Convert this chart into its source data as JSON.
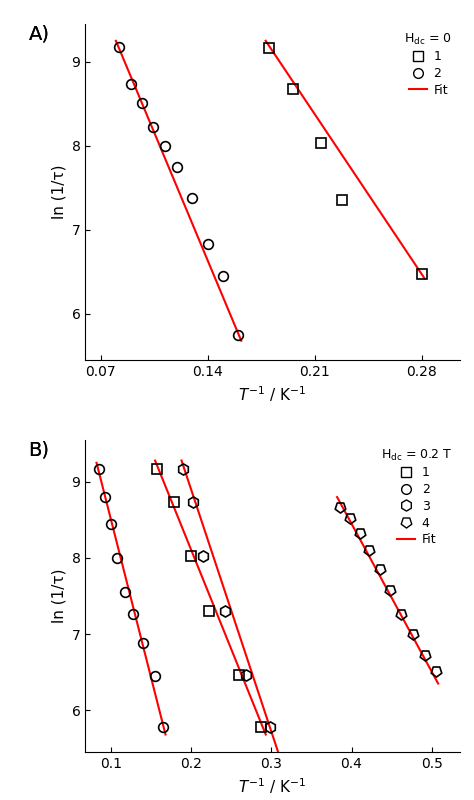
{
  "panel_A": {
    "title": "A)",
    "legend_title": "H$_\\mathregular{dc}$ = 0",
    "xlabel": "$\\mathit{T}^{-1}$ / K$^{-1}$",
    "ylabel": "ln (1/τ)",
    "xlim": [
      0.06,
      0.305
    ],
    "ylim": [
      5.45,
      9.45
    ],
    "xticks": [
      0.07,
      0.14,
      0.21,
      0.28
    ],
    "yticks": [
      6,
      7,
      8,
      9
    ],
    "series": [
      {
        "label": "1",
        "marker": "s",
        "x": [
          0.18,
          0.196,
          0.214,
          0.228,
          0.28
        ],
        "y": [
          9.17,
          8.68,
          8.03,
          7.35,
          6.47
        ]
      },
      {
        "label": "2",
        "marker": "o",
        "x": [
          0.082,
          0.09,
          0.097,
          0.104,
          0.112,
          0.12,
          0.13,
          0.14,
          0.15,
          0.16
        ],
        "y": [
          9.18,
          8.73,
          8.51,
          8.22,
          8.0,
          7.75,
          7.38,
          6.83,
          6.45,
          5.75
        ]
      }
    ],
    "fits": [
      {
        "x": [
          0.178,
          0.282
        ],
        "y": [
          9.25,
          6.42
        ]
      },
      {
        "x": [
          0.08,
          0.162
        ],
        "y": [
          9.25,
          5.68
        ]
      }
    ]
  },
  "panel_B": {
    "title": "B)",
    "legend_title": "H$_\\mathregular{dc}$ = 0.2 T",
    "xlabel": "$\\mathit{T}^{-1}$ / K$^{-1}$",
    "ylabel": "ln (1/τ)",
    "xlim": [
      0.068,
      0.535
    ],
    "ylim": [
      5.45,
      9.55
    ],
    "xticks": [
      0.1,
      0.2,
      0.3,
      0.4,
      0.5
    ],
    "yticks": [
      6,
      7,
      8,
      9
    ],
    "series": [
      {
        "label": "1",
        "marker": "s",
        "x": [
          0.158,
          0.178,
          0.2,
          0.222,
          0.26,
          0.287
        ],
        "y": [
          9.17,
          8.73,
          8.02,
          7.3,
          6.46,
          5.78
        ]
      },
      {
        "label": "2",
        "marker": "o",
        "x": [
          0.085,
          0.093,
          0.1,
          0.108,
          0.118,
          0.128,
          0.14,
          0.155,
          0.165
        ],
        "y": [
          9.17,
          8.8,
          8.44,
          8.0,
          7.55,
          7.27,
          6.88,
          6.45,
          5.78
        ]
      },
      {
        "label": "3",
        "marker": "hexagon",
        "x": [
          0.19,
          0.202,
          0.215,
          0.242,
          0.268,
          0.298
        ],
        "y": [
          9.17,
          8.73,
          8.02,
          7.3,
          6.46,
          5.78
        ]
      },
      {
        "label": "4",
        "marker": "pentagon",
        "x": [
          0.385,
          0.398,
          0.41,
          0.422,
          0.435,
          0.448,
          0.462,
          0.477,
          0.492,
          0.505
        ],
        "y": [
          8.67,
          8.52,
          8.33,
          8.1,
          7.85,
          7.58,
          7.27,
          7.0,
          6.72,
          6.52
        ]
      }
    ],
    "fits": [
      {
        "x": [
          0.155,
          0.293
        ],
        "y": [
          9.28,
          5.68
        ]
      },
      {
        "x": [
          0.082,
          0.168
        ],
        "y": [
          9.25,
          5.68
        ]
      },
      {
        "x": [
          0.188,
          0.31
        ],
        "y": [
          9.28,
          5.4
        ]
      },
      {
        "x": [
          0.382,
          0.508
        ],
        "y": [
          8.8,
          6.35
        ]
      }
    ]
  },
  "marker_size": 7,
  "linewidth": 1.5,
  "marker_color": "black",
  "marker_facecolor": "none",
  "fit_color": "red",
  "background_color": "white",
  "tick_fontsize": 10,
  "label_fontsize": 11,
  "legend_fontsize": 9
}
